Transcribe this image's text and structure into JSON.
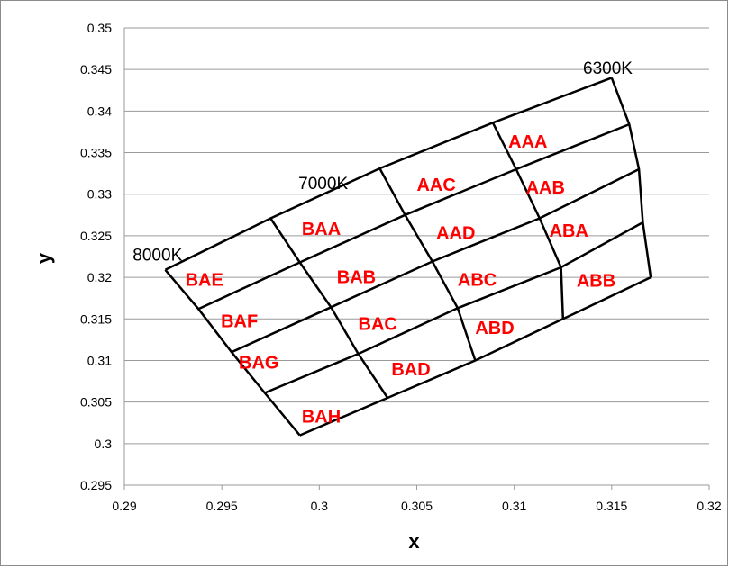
{
  "chart_data": {
    "type": "scatter",
    "xlabel": "x",
    "ylabel": "y",
    "xlim": [
      0.29,
      0.32
    ],
    "ylim": [
      0.295,
      0.35
    ],
    "x_ticks": [
      "0.29",
      "0.295",
      "0.3",
      "0.305",
      "0.31",
      "0.315",
      "0.32"
    ],
    "y_ticks": [
      "0.295",
      "0.3",
      "0.305",
      "0.31",
      "0.315",
      "0.32",
      "0.325",
      "0.33",
      "0.335",
      "0.34",
      "0.345",
      "0.35"
    ],
    "grid": "horizontal",
    "line_color": "#000000",
    "label_color": "#ff0000",
    "grid_lines": [
      {
        "points": [
          [
            0.2921,
            0.3209
          ],
          [
            0.2975,
            0.3271
          ],
          [
            0.3031,
            0.3331
          ],
          [
            0.3089,
            0.3386
          ],
          [
            0.315,
            0.344
          ]
        ]
      },
      {
        "points": [
          [
            0.2938,
            0.3162
          ],
          [
            0.299,
            0.3219
          ],
          [
            0.3044,
            0.3275
          ],
          [
            0.3101,
            0.3329
          ],
          [
            0.3159,
            0.3384
          ]
        ]
      },
      {
        "points": [
          [
            0.2955,
            0.3115
          ],
          [
            0.3006,
            0.3167
          ],
          [
            0.3058,
            0.322
          ],
          [
            0.3113,
            0.3271
          ],
          [
            0.3169,
            0.333
          ]
        ]
      },
      {
        "points": [
          [
            0.2972,
            0.3068
          ],
          [
            0.3021,
            0.3115
          ],
          [
            0.3072,
            0.3165
          ],
          [
            0.3125,
            0.3214
          ],
          [
            0.3164,
            0.3266
          ]
        ]
      },
      {
        "points": [
          [
            0.2972,
            0.311
          ],
          [
            0.302,
            0.3162
          ],
          [
            0.3071,
            0.3213
          ],
          [
            0.3124,
            0.3263
          ],
          [
            0.317,
            0.32
          ]
        ]
      },
      {
        "points": [
          [
            0.2972,
            0.306
          ],
          [
            0.3023,
            0.3108
          ],
          [
            0.308,
            0.31
          ],
          [
            0.3124,
            0.315
          ],
          [
            0.317,
            0.32
          ]
        ]
      },
      {
        "points": [
          [
            0.2972,
            0.306
          ],
          [
            0.3035,
            0.3055
          ],
          [
            0.308,
            0.31
          ]
        ]
      },
      {
        "points": [
          [
            0.299,
            0.301
          ],
          [
            0.3035,
            0.3055
          ]
        ]
      },
      {
        "points": [
          [
            0.2921,
            0.3209
          ],
          [
            0.2938,
            0.3162
          ],
          [
            0.2955,
            0.311
          ],
          [
            0.2972,
            0.306
          ],
          [
            0.299,
            0.301
          ]
        ]
      },
      {
        "points": [
          [
            0.2975,
            0.3271
          ],
          [
            0.299,
            0.3219
          ],
          [
            0.3006,
            0.3164
          ],
          [
            0.302,
            0.3108
          ],
          [
            0.3035,
            0.3055
          ]
        ]
      },
      {
        "points": [
          [
            0.3031,
            0.3331
          ],
          [
            0.3044,
            0.3275
          ],
          [
            0.3058,
            0.322
          ],
          [
            0.3071,
            0.3163
          ],
          [
            0.308,
            0.31
          ]
        ]
      },
      {
        "points": [
          [
            0.3089,
            0.3386
          ],
          [
            0.3101,
            0.3329
          ],
          [
            0.3113,
            0.3271
          ],
          [
            0.3124,
            0.3213
          ],
          [
            0.3124,
            0.315
          ]
        ]
      },
      {
        "points": [
          [
            0.315,
            0.344
          ],
          [
            0.3159,
            0.3384
          ],
          [
            0.3164,
            0.333
          ],
          [
            0.3166,
            0.3266
          ],
          [
            0.317,
            0.32
          ]
        ]
      }
    ],
    "cct_labels": [
      {
        "text": "8000K",
        "x": 0.2917,
        "y": 0.322
      },
      {
        "text": "7000K",
        "x": 0.3002,
        "y": 0.3306
      },
      {
        "text": "6300K",
        "x": 0.3148,
        "y": 0.3445
      }
    ],
    "bin_labels": [
      {
        "text": "AAA",
        "x": 0.3107,
        "y": 0.3356
      },
      {
        "text": "AAB",
        "x": 0.3116,
        "y": 0.3301
      },
      {
        "text": "AAC",
        "x": 0.306,
        "y": 0.3304
      },
      {
        "text": "AAD",
        "x": 0.307,
        "y": 0.3246
      },
      {
        "text": "ABA",
        "x": 0.3128,
        "y": 0.3249
      },
      {
        "text": "ABB",
        "x": 0.3142,
        "y": 0.3189
      },
      {
        "text": "ABC",
        "x": 0.3081,
        "y": 0.319
      },
      {
        "text": "ABD",
        "x": 0.309,
        "y": 0.3132
      },
      {
        "text": "BAA",
        "x": 0.3001,
        "y": 0.3251
      },
      {
        "text": "BAB",
        "x": 0.3019,
        "y": 0.3193
      },
      {
        "text": "BAC",
        "x": 0.303,
        "y": 0.3137
      },
      {
        "text": "BAD",
        "x": 0.3047,
        "y": 0.3082
      },
      {
        "text": "BAE",
        "x": 0.2941,
        "y": 0.319
      },
      {
        "text": "BAF",
        "x": 0.2959,
        "y": 0.314
      },
      {
        "text": "BAG",
        "x": 0.2969,
        "y": 0.309
      },
      {
        "text": "BAH",
        "x": 0.3001,
        "y": 0.3025
      }
    ]
  }
}
